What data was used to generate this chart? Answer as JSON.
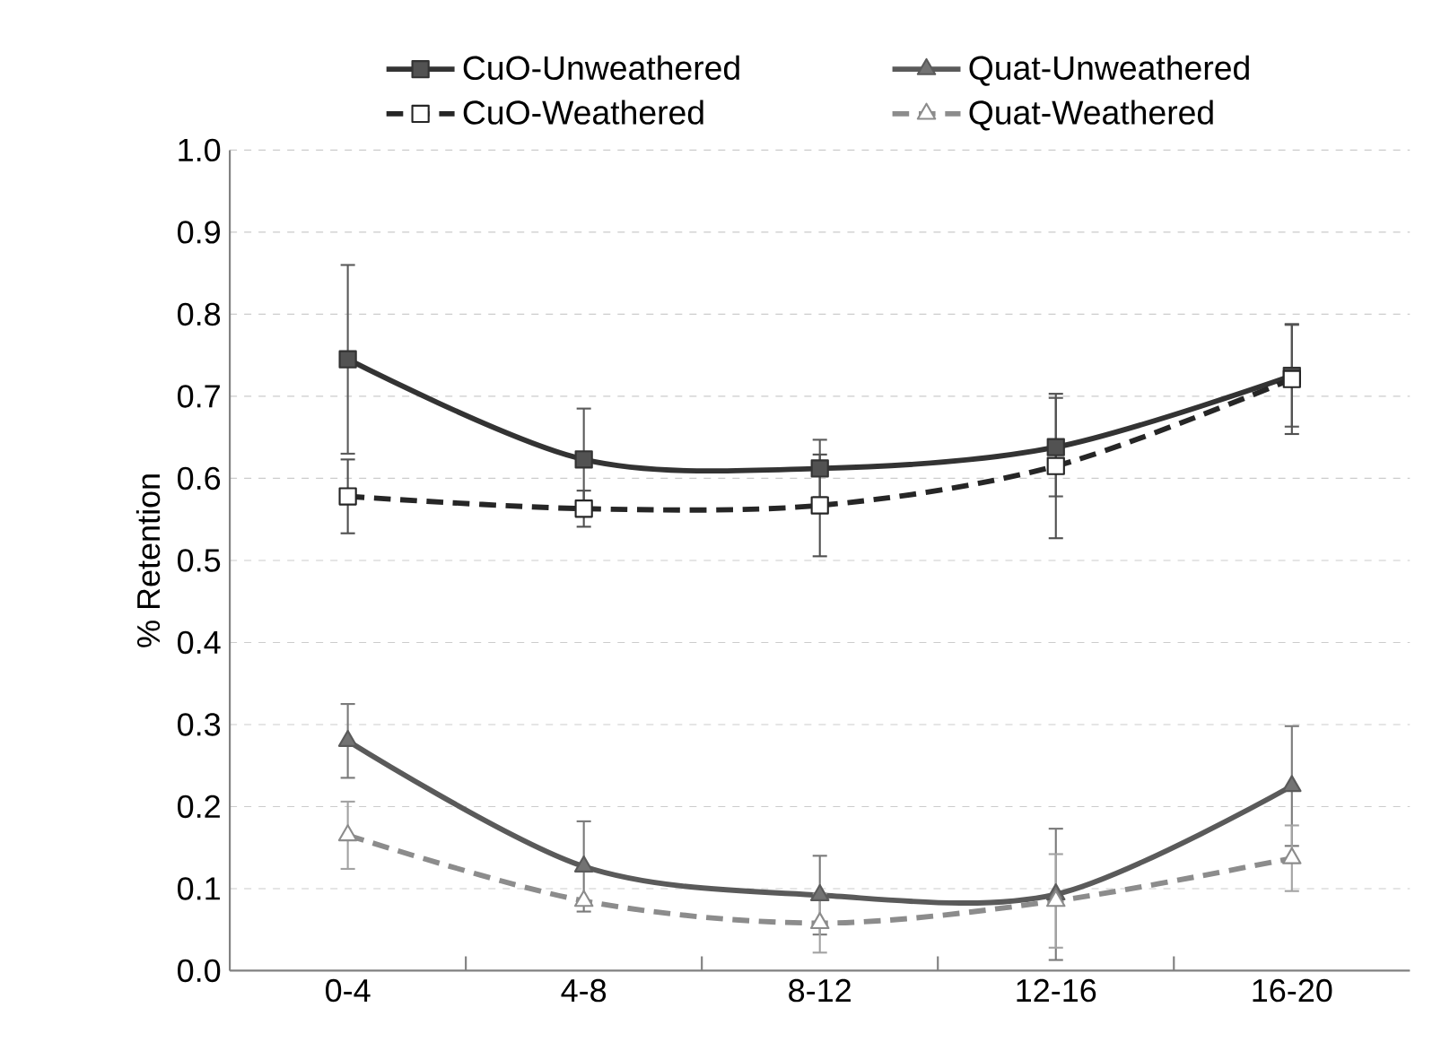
{
  "chart_data": {
    "type": "line",
    "ylabel": "% Retention",
    "categories": [
      "0-4",
      "4-8",
      "8-12",
      "12-16",
      "16-20"
    ],
    "series": [
      {
        "name": "CuO-Unweathered",
        "color": "#333333",
        "marker": "square",
        "line_style": "solid",
        "values": [
          0.745,
          0.623,
          0.612,
          0.638,
          0.725
        ],
        "errors": [
          0.115,
          0.062,
          0.035,
          0.06,
          0.062
        ]
      },
      {
        "name": "CuO-Weathered",
        "color": "#262626",
        "marker": "square",
        "line_style": "dashed",
        "values": [
          0.578,
          0.563,
          0.567,
          0.615,
          0.721
        ],
        "errors": [
          0.045,
          0.022,
          0.062,
          0.088,
          0.067
        ]
      },
      {
        "name": "Quat-Unweathered",
        "color": "#5a5a5a",
        "marker": "triangle",
        "line_style": "solid",
        "values": [
          0.28,
          0.127,
          0.092,
          0.093,
          0.225
        ],
        "errors": [
          0.045,
          0.055,
          0.048,
          0.08,
          0.073
        ]
      },
      {
        "name": "Quat-Weathered",
        "color": "#8c8c8c",
        "marker": "triangle",
        "line_style": "dashed",
        "values": [
          0.165,
          0.085,
          0.058,
          0.085,
          0.137
        ],
        "errors": [
          0.041,
          null,
          0.036,
          0.057,
          0.04
        ]
      }
    ],
    "ylim": [
      0,
      1.0
    ],
    "yticks": [
      {
        "value": 0,
        "label": "0.0"
      },
      {
        "value": 0.1,
        "label": "0.1"
      },
      {
        "value": 0.2,
        "label": "0.2"
      },
      {
        "value": 0.3,
        "label": "0.3"
      },
      {
        "value": 0.4,
        "label": "0.4"
      },
      {
        "value": 0.5,
        "label": "0.5"
      },
      {
        "value": 0.6,
        "label": "0.6"
      },
      {
        "value": 0.7,
        "label": "0.7"
      },
      {
        "value": 0.8,
        "label": "0.8"
      },
      {
        "value": 0.9,
        "label": "0.9"
      },
      {
        "value": 1.0,
        "label": "1.0"
      }
    ],
    "grid": "y",
    "legend": "top"
  }
}
